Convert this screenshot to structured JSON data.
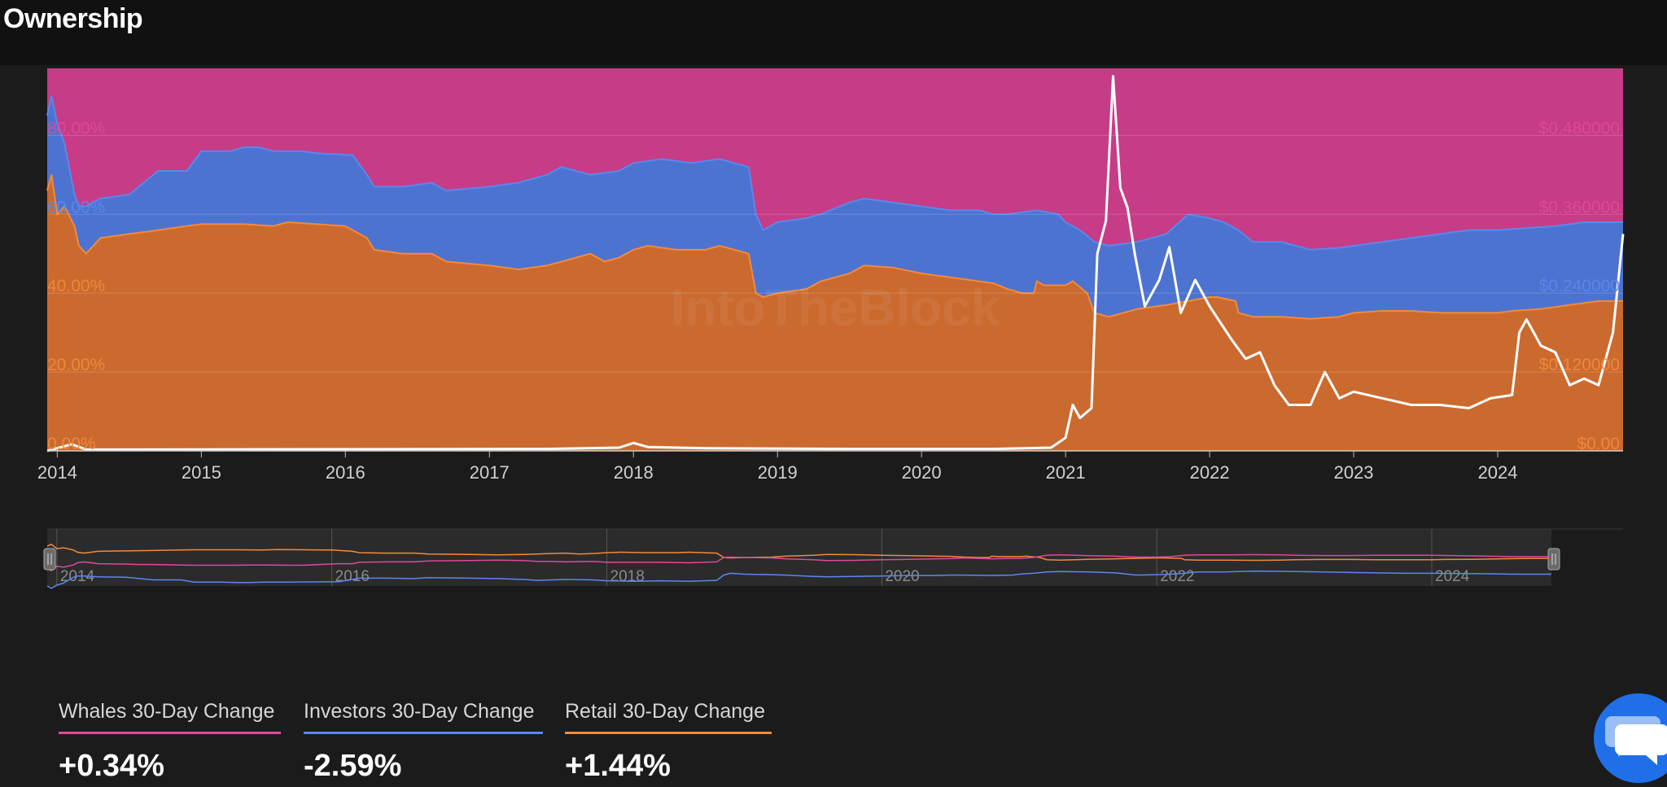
{
  "page": {
    "title": "Ownership"
  },
  "chart_data": {
    "type": "area",
    "stacked": true,
    "watermark": "IntoTheBlock",
    "x_ticks": [
      "2014",
      "2015",
      "2016",
      "2017",
      "2018",
      "2019",
      "2020",
      "2021",
      "2022",
      "2023",
      "2024"
    ],
    "xlim": [
      2013.93,
      2024.87
    ],
    "left_axis": {
      "ticks": [
        "0.00%",
        "20.00%",
        "40.00%",
        "60.00%",
        "80.00%"
      ],
      "ylim": [
        0,
        97
      ]
    },
    "right_axis": {
      "ticks": [
        "$0.00",
        "$0.120000",
        "$0.240000",
        "$0.360000",
        "$0.480000"
      ],
      "ylim": [
        0,
        0.582
      ]
    },
    "series": [
      {
        "name": "Retail",
        "color": "#cb6a2f",
        "line": "#f28a3c",
        "points": [
          [
            2013.93,
            66
          ],
          [
            2013.96,
            70
          ],
          [
            2014.0,
            60
          ],
          [
            2014.05,
            62
          ],
          [
            2014.12,
            57
          ],
          [
            2014.15,
            52
          ],
          [
            2014.2,
            50
          ],
          [
            2014.3,
            54
          ],
          [
            2014.5,
            55
          ],
          [
            2014.7,
            56
          ],
          [
            2014.9,
            57
          ],
          [
            2015.0,
            57.5
          ],
          [
            2015.3,
            57.5
          ],
          [
            2015.5,
            57
          ],
          [
            2015.6,
            58
          ],
          [
            2015.8,
            57.5
          ],
          [
            2016.0,
            57
          ],
          [
            2016.15,
            54
          ],
          [
            2016.2,
            51
          ],
          [
            2016.4,
            50
          ],
          [
            2016.6,
            50
          ],
          [
            2016.7,
            48
          ],
          [
            2017.0,
            47
          ],
          [
            2017.2,
            46
          ],
          [
            2017.4,
            47
          ],
          [
            2017.6,
            49
          ],
          [
            2017.7,
            50
          ],
          [
            2017.8,
            48
          ],
          [
            2017.9,
            49
          ],
          [
            2018.0,
            51
          ],
          [
            2018.1,
            52
          ],
          [
            2018.3,
            51
          ],
          [
            2018.5,
            51
          ],
          [
            2018.6,
            52
          ],
          [
            2018.7,
            51
          ],
          [
            2018.8,
            50
          ],
          [
            2018.85,
            40
          ],
          [
            2018.9,
            39
          ],
          [
            2019.0,
            40
          ],
          [
            2019.2,
            41
          ],
          [
            2019.3,
            43
          ],
          [
            2019.5,
            45
          ],
          [
            2019.6,
            47
          ],
          [
            2019.8,
            46.5
          ],
          [
            2020.0,
            45
          ],
          [
            2020.2,
            44
          ],
          [
            2020.4,
            43
          ],
          [
            2020.5,
            42.5
          ],
          [
            2020.6,
            41
          ],
          [
            2020.7,
            40
          ],
          [
            2020.78,
            40
          ],
          [
            2020.8,
            43
          ],
          [
            2020.85,
            42
          ],
          [
            2021.0,
            42
          ],
          [
            2021.05,
            43
          ],
          [
            2021.15,
            40
          ],
          [
            2021.2,
            35
          ],
          [
            2021.3,
            34
          ],
          [
            2021.5,
            36
          ],
          [
            2021.7,
            37
          ],
          [
            2022.0,
            39
          ],
          [
            2022.05,
            39
          ],
          [
            2022.18,
            38
          ],
          [
            2022.2,
            35
          ],
          [
            2022.3,
            34
          ],
          [
            2022.5,
            34
          ],
          [
            2022.7,
            33.5
          ],
          [
            2022.9,
            34
          ],
          [
            2023.0,
            35
          ],
          [
            2023.2,
            35.5
          ],
          [
            2023.4,
            35.5
          ],
          [
            2023.6,
            35
          ],
          [
            2023.8,
            35
          ],
          [
            2024.0,
            35
          ],
          [
            2024.1,
            35.5
          ],
          [
            2024.3,
            36
          ],
          [
            2024.5,
            37
          ],
          [
            2024.7,
            38
          ],
          [
            2024.87,
            38
          ]
        ]
      },
      {
        "name": "Investors",
        "color": "#4d73d0",
        "line": "#5b87ee",
        "points": [
          [
            2013.93,
            85
          ],
          [
            2013.96,
            90
          ],
          [
            2014.0,
            83
          ],
          [
            2014.05,
            78
          ],
          [
            2014.12,
            65
          ],
          [
            2014.15,
            62
          ],
          [
            2014.2,
            62
          ],
          [
            2014.3,
            64
          ],
          [
            2014.5,
            65
          ],
          [
            2014.6,
            68
          ],
          [
            2014.7,
            71
          ],
          [
            2014.9,
            71
          ],
          [
            2015.0,
            76
          ],
          [
            2015.2,
            76
          ],
          [
            2015.3,
            77
          ],
          [
            2015.4,
            77
          ],
          [
            2015.5,
            76
          ],
          [
            2015.7,
            76
          ],
          [
            2015.8,
            75.5
          ],
          [
            2016.05,
            75
          ],
          [
            2016.15,
            70
          ],
          [
            2016.2,
            67
          ],
          [
            2016.4,
            67
          ],
          [
            2016.6,
            68
          ],
          [
            2016.7,
            66
          ],
          [
            2017.0,
            67
          ],
          [
            2017.2,
            68
          ],
          [
            2017.4,
            70
          ],
          [
            2017.5,
            72
          ],
          [
            2017.6,
            71
          ],
          [
            2017.7,
            70
          ],
          [
            2017.9,
            71
          ],
          [
            2018.0,
            73
          ],
          [
            2018.2,
            74
          ],
          [
            2018.4,
            73
          ],
          [
            2018.6,
            74
          ],
          [
            2018.7,
            73
          ],
          [
            2018.8,
            72
          ],
          [
            2018.85,
            60
          ],
          [
            2018.9,
            56
          ],
          [
            2019.0,
            58
          ],
          [
            2019.2,
            59
          ],
          [
            2019.3,
            60
          ],
          [
            2019.5,
            63
          ],
          [
            2019.6,
            64
          ],
          [
            2019.8,
            63
          ],
          [
            2020.0,
            62
          ],
          [
            2020.2,
            61
          ],
          [
            2020.4,
            61
          ],
          [
            2020.5,
            60
          ],
          [
            2020.6,
            60
          ],
          [
            2020.8,
            61
          ],
          [
            2020.95,
            60
          ],
          [
            2021.0,
            58
          ],
          [
            2021.1,
            56
          ],
          [
            2021.2,
            53
          ],
          [
            2021.3,
            52
          ],
          [
            2021.5,
            53
          ],
          [
            2021.7,
            55
          ],
          [
            2021.85,
            60
          ],
          [
            2022.0,
            59
          ],
          [
            2022.1,
            58
          ],
          [
            2022.2,
            56
          ],
          [
            2022.3,
            53
          ],
          [
            2022.5,
            53
          ],
          [
            2022.7,
            51
          ],
          [
            2022.9,
            51.5
          ],
          [
            2023.0,
            52
          ],
          [
            2023.2,
            53
          ],
          [
            2023.4,
            54
          ],
          [
            2023.6,
            55
          ],
          [
            2023.8,
            56
          ],
          [
            2024.0,
            56
          ],
          [
            2024.2,
            56.5
          ],
          [
            2024.4,
            57
          ],
          [
            2024.6,
            58
          ],
          [
            2024.87,
            58
          ]
        ]
      },
      {
        "name": "Whales",
        "color": "#c63c86",
        "line": "#e0489a",
        "top": 97
      }
    ],
    "price_line": {
      "color": "#ffffff",
      "points": [
        [
          2013.93,
          0
        ],
        [
          2014.1,
          0.01
        ],
        [
          2014.2,
          0.002
        ],
        [
          2017.4,
          0.003
        ],
        [
          2017.9,
          0.005
        ],
        [
          2018.0,
          0.012
        ],
        [
          2018.1,
          0.006
        ],
        [
          2018.5,
          0.004
        ],
        [
          2019.5,
          0.003
        ],
        [
          2020.5,
          0.003
        ],
        [
          2020.9,
          0.005
        ],
        [
          2021.0,
          0.02
        ],
        [
          2021.05,
          0.07
        ],
        [
          2021.1,
          0.05
        ],
        [
          2021.18,
          0.065
        ],
        [
          2021.22,
          0.3
        ],
        [
          2021.28,
          0.35
        ],
        [
          2021.33,
          0.57
        ],
        [
          2021.38,
          0.4
        ],
        [
          2021.43,
          0.37
        ],
        [
          2021.48,
          0.3
        ],
        [
          2021.55,
          0.22
        ],
        [
          2021.65,
          0.26
        ],
        [
          2021.72,
          0.31
        ],
        [
          2021.8,
          0.21
        ],
        [
          2021.9,
          0.26
        ],
        [
          2022.0,
          0.22
        ],
        [
          2022.15,
          0.17
        ],
        [
          2022.25,
          0.14
        ],
        [
          2022.35,
          0.15
        ],
        [
          2022.45,
          0.1
        ],
        [
          2022.55,
          0.07
        ],
        [
          2022.7,
          0.07
        ],
        [
          2022.8,
          0.12
        ],
        [
          2022.9,
          0.08
        ],
        [
          2023.0,
          0.09
        ],
        [
          2023.2,
          0.08
        ],
        [
          2023.4,
          0.07
        ],
        [
          2023.6,
          0.07
        ],
        [
          2023.8,
          0.065
        ],
        [
          2023.95,
          0.08
        ],
        [
          2024.1,
          0.085
        ],
        [
          2024.15,
          0.18
        ],
        [
          2024.2,
          0.2
        ],
        [
          2024.3,
          0.16
        ],
        [
          2024.4,
          0.15
        ],
        [
          2024.5,
          0.1
        ],
        [
          2024.6,
          0.11
        ],
        [
          2024.7,
          0.1
        ],
        [
          2024.8,
          0.18
        ],
        [
          2024.87,
          0.33
        ]
      ]
    },
    "navigator": {
      "ticks": [
        "2014",
        "2016",
        "2018",
        "2020",
        "2022",
        "2024"
      ],
      "tick_years": [
        2014,
        2016,
        2018,
        2020,
        2022,
        2024
      ]
    }
  },
  "cards": [
    {
      "label": "Whales 30-Day Change",
      "value": "+0.34%",
      "color": "#e0489a"
    },
    {
      "label": "Investors 30-Day Change",
      "value": "-2.59%",
      "color": "#5b87ee"
    },
    {
      "label": "Retail 30-Day Change",
      "value": "+1.44%",
      "color": "#f28a3c"
    }
  ]
}
